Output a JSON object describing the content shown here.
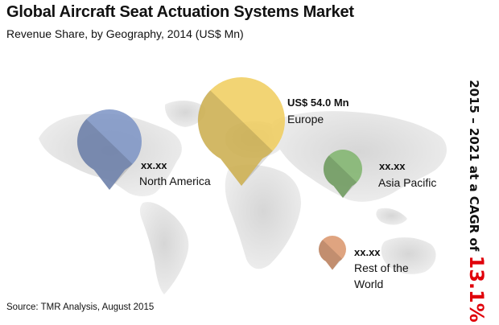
{
  "chart_data": {
    "type": "bubble-map",
    "title": "Global Aircraft Seat Actuation Systems Market",
    "subtitle": "Revenue Share, by Geography, 2014 (US$ Mn)",
    "regions": [
      {
        "name": "North America",
        "value_label": "xx.xx",
        "color": "#7b93c4"
      },
      {
        "name": "Europe",
        "value_label": "US$ 54.0 Mn",
        "color": "#f0cc5c"
      },
      {
        "name": "Asia Pacific",
        "value_label": "xx.xx",
        "color": "#7fb46c"
      },
      {
        "name": "Rest of the World",
        "value_label": "xx.xx",
        "color": "#d9946a"
      }
    ],
    "cagr": {
      "prefix": "2015 – 2021 at a CAGR of ",
      "value": "13.1%",
      "value_color": "#e0000a"
    },
    "source": "Source: TMR Analysis, August 2015"
  }
}
